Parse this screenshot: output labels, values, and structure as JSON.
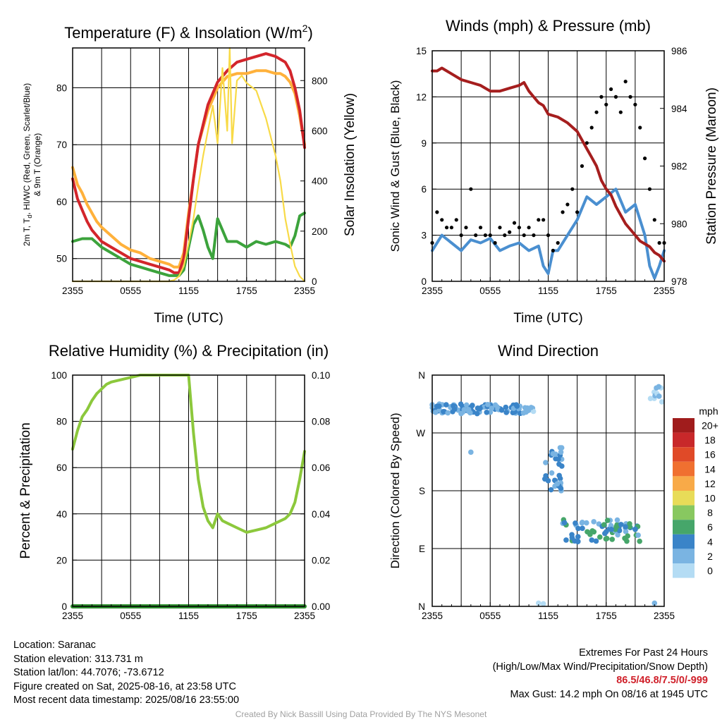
{
  "chart_data": [
    {
      "type": "line",
      "title": "Temperature (F) & Insolation (W/m",
      "title_sup": "2",
      "title_end": ")",
      "xlabel": "Time (UTC)",
      "ylabel_left": "2m T, T",
      "ylabel_left_sub": "d",
      "ylabel_left_rest": ", HI/WC (Red, Green, Scarlet/Blue)",
      "ylabel_left_line2": "& 9m T (Orange)",
      "ylabel_right": "Solar Insolation (Yellow)",
      "x_ticks": [
        "2355",
        "0555",
        "1155",
        "1755",
        "2355"
      ],
      "ylim_left": [
        46,
        87
      ],
      "yticks_left": [
        50,
        60,
        70,
        80
      ],
      "ylim_right": [
        0,
        930
      ],
      "yticks_right": [
        0,
        200,
        400,
        600,
        800
      ],
      "grid": true,
      "series": [
        {
          "color": "#ffb13b",
          "axis": "left",
          "x": [
            0,
            0.5,
            1,
            1.5,
            2,
            2.5,
            3,
            4,
            5,
            6,
            7,
            8,
            9,
            10,
            10.5,
            11,
            11.5,
            12,
            12.5,
            13,
            14,
            15,
            16,
            17,
            18,
            19,
            20,
            21,
            21.5,
            22,
            22.5,
            23,
            23.5,
            24
          ],
          "y": [
            66,
            63,
            61.5,
            59.5,
            58,
            56.5,
            55.5,
            54,
            52.5,
            51.5,
            51,
            50,
            49.5,
            49,
            48.5,
            48.5,
            51,
            58,
            64,
            70,
            76,
            80,
            82,
            82.5,
            82.5,
            83,
            83,
            82.5,
            82.5,
            82,
            81,
            79,
            75,
            70
          ]
        },
        {
          "color": "#d3252b",
          "axis": "left",
          "x": [
            0,
            0.5,
            1,
            1.5,
            2,
            2.5,
            3,
            4,
            5,
            6,
            7,
            8,
            9,
            10,
            10.5,
            11,
            11.5,
            12,
            12.5,
            13,
            14,
            15,
            16,
            17,
            18,
            19,
            20,
            21,
            21.5,
            22,
            22.5,
            23,
            23.5,
            24
          ],
          "y": [
            64,
            60.5,
            58.5,
            56.5,
            55,
            54,
            53,
            52,
            51,
            50,
            49.5,
            49,
            48.5,
            48,
            47.5,
            47.5,
            50,
            57,
            64,
            70,
            77,
            81,
            83,
            84.5,
            85,
            85.5,
            86,
            85.5,
            85,
            84.5,
            83,
            80,
            76,
            69.5
          ]
        },
        {
          "color": "#3ca33c",
          "axis": "left",
          "x": [
            0,
            1,
            2,
            3,
            4,
            5,
            6,
            7,
            8,
            9,
            10,
            10.5,
            11,
            11.5,
            12,
            12.5,
            13,
            13.5,
            14,
            14.5,
            15,
            15.5,
            16,
            17,
            18,
            19,
            20,
            21,
            22,
            22.5,
            23,
            23.5,
            24
          ],
          "y": [
            53,
            53.5,
            53.5,
            52,
            51,
            50,
            49,
            48.5,
            48,
            47.5,
            47,
            47,
            47,
            48,
            52,
            56,
            57.5,
            55,
            52,
            50,
            57,
            55,
            53,
            53,
            52,
            53,
            52.5,
            53,
            52.5,
            52,
            54,
            57.5,
            58
          ]
        },
        {
          "color": "#f8da47",
          "axis": "right",
          "x": [
            0,
            7,
            8,
            9,
            10,
            10.5,
            11,
            11.5,
            12,
            12.5,
            13,
            13.5,
            14,
            14.5,
            15,
            15.5,
            16,
            16.25,
            16.5,
            17,
            17.5,
            18,
            19,
            20,
            21,
            21.5,
            22,
            22.5,
            23,
            23.5,
            24
          ],
          "y": [
            0,
            0,
            0,
            0,
            0,
            5,
            20,
            60,
            150,
            250,
            380,
            500,
            600,
            700,
            550,
            850,
            600,
            930,
            550,
            800,
            820,
            790,
            760,
            650,
            500,
            400,
            250,
            150,
            60,
            20,
            0
          ]
        }
      ]
    },
    {
      "type": "line",
      "title": "Winds (mph) & Pressure (mb)",
      "xlabel": "Time (UTC)",
      "ylabel_left": "Sonic Wind & Gust (Blue, Black)",
      "ylabel_right": "Station Pressure (Maroon)",
      "x_ticks": [
        "2355",
        "0555",
        "1155",
        "1755",
        "2355"
      ],
      "ylim_left": [
        0,
        15
      ],
      "yticks_left": [
        0,
        3,
        6,
        9,
        12,
        15
      ],
      "ylim_right": [
        978,
        986
      ],
      "yticks_right": [
        978,
        980,
        982,
        984,
        986
      ],
      "grid": true,
      "series": [
        {
          "name_role": "wind",
          "color": "#4a8fd0",
          "axis": "left",
          "x": [
            0,
            1,
            2,
            3,
            4,
            5,
            6,
            7,
            8,
            9,
            10,
            11,
            11.5,
            12,
            12.5,
            13,
            14,
            15,
            16,
            17,
            18,
            19,
            20,
            21,
            22,
            22.5,
            23,
            23.5,
            24
          ],
          "y": [
            2,
            3,
            2.5,
            2,
            2.7,
            2.5,
            2.8,
            2,
            2.3,
            2.5,
            2,
            2.3,
            1,
            0.5,
            2,
            2,
            3,
            4,
            5.5,
            5,
            5.5,
            6,
            4.5,
            5,
            3,
            1,
            0.2,
            1,
            2
          ]
        },
        {
          "name_role": "gust",
          "color": "#000000",
          "axis": "left",
          "style": "dots",
          "x": [
            0,
            0.5,
            1,
            1.5,
            2,
            2.5,
            3,
            3.5,
            4,
            4.5,
            5,
            5.5,
            6,
            6.5,
            7,
            7.5,
            8,
            8.5,
            9,
            9.5,
            10,
            10.5,
            11,
            11.5,
            12,
            12.5,
            13,
            13.5,
            14,
            14.5,
            15,
            15.5,
            16,
            16.5,
            17,
            17.5,
            18,
            18.5,
            19,
            19.5,
            20,
            20.5,
            21,
            21.5,
            22,
            22.5,
            23,
            23.5,
            24
          ],
          "y": [
            2.5,
            4.5,
            4,
            3.5,
            3.5,
            4,
            3,
            3.5,
            6,
            3,
            3.5,
            3,
            3,
            2.5,
            3.5,
            3,
            3.2,
            3.8,
            3.5,
            3,
            3.5,
            3,
            4,
            4,
            3,
            2,
            2.5,
            4.5,
            5,
            6,
            4.5,
            7.5,
            9,
            10,
            11,
            12,
            11.5,
            12.5,
            12,
            11,
            13,
            12,
            11.5,
            10,
            8,
            6,
            4,
            2.5,
            2.5
          ]
        },
        {
          "name_role": "pressure",
          "color": "#a51e1e",
          "axis": "right",
          "x": [
            0,
            0.5,
            1,
            1.5,
            2,
            3,
            4,
            5,
            6,
            7,
            8,
            9,
            9.5,
            10,
            10.5,
            11,
            11.5,
            12,
            13,
            14,
            15,
            15.5,
            16,
            16.5,
            17,
            17.5,
            18,
            18.5,
            19,
            19.5,
            20,
            20.5,
            21,
            21.5,
            22,
            22.5,
            23,
            23.5,
            24
          ],
          "y": [
            985.3,
            985.3,
            985.4,
            985.3,
            985.2,
            985,
            984.9,
            984.8,
            984.6,
            984.6,
            984.7,
            984.8,
            984.9,
            984.6,
            984.4,
            984.2,
            984.1,
            983.8,
            983.7,
            983.5,
            983.2,
            982.9,
            982.6,
            982.3,
            982,
            981.5,
            981.2,
            981,
            980.6,
            980.3,
            980,
            979.8,
            979.6,
            979.4,
            979.3,
            979.2,
            979,
            978.9,
            978.7
          ]
        }
      ]
    },
    {
      "type": "line",
      "title": "Relative Humidity (%) & Precipitation (in)",
      "xlabel": "",
      "ylabel_left": "Percent & Precipitation",
      "x_ticks": [
        "2355",
        "0555",
        "1155",
        "1755",
        "2355"
      ],
      "ylim_left": [
        0,
        100
      ],
      "yticks_left": [
        0,
        20,
        40,
        60,
        80,
        100
      ],
      "ylim_right": [
        0,
        0.1
      ],
      "yticks_right": [
        "0.00",
        "0.02",
        "0.04",
        "0.06",
        "0.08",
        "0.10"
      ],
      "grid": true,
      "series": [
        {
          "color": "#8cc83c",
          "axis": "left",
          "x": [
            0,
            0.5,
            1,
            1.5,
            2,
            2.5,
            3,
            3.5,
            4,
            5,
            6,
            7,
            8,
            9,
            10,
            11,
            11.5,
            12,
            12.5,
            13,
            13.5,
            14,
            14.5,
            15,
            15.5,
            16,
            17,
            18,
            19,
            20,
            21,
            22,
            22.5,
            23,
            23.5,
            24
          ],
          "y": [
            68,
            76,
            82,
            85,
            89,
            92,
            94,
            96,
            97,
            98,
            99,
            100,
            100,
            100,
            100,
            100,
            100,
            100,
            75,
            55,
            43,
            37,
            34,
            40,
            37,
            36,
            34,
            32,
            33,
            34,
            36,
            38,
            40,
            45,
            55,
            67
          ]
        },
        {
          "color": "#2f8f2f",
          "axis": "right",
          "x": [
            0,
            24
          ],
          "y": [
            0,
            0
          ]
        }
      ]
    },
    {
      "type": "scatter",
      "title": "Wind Direction",
      "xlabel": "",
      "ylabel_left": "Direction (Colored By Speed)",
      "x_ticks": [
        "2355",
        "0555",
        "1155",
        "1755",
        "2355"
      ],
      "y_ticks": [
        "N",
        "W",
        "S",
        "E",
        "N"
      ],
      "ylim_left": [
        0,
        360
      ],
      "grid": true,
      "legend": {
        "title": "mph",
        "labels": [
          "20+",
          "18",
          "16",
          "14",
          "12",
          "10",
          "8",
          "6",
          "4",
          "2",
          "0"
        ],
        "colors": [
          "#a01c1c",
          "#c8282a",
          "#e04a28",
          "#f07030",
          "#f8aa48",
          "#e8dc58",
          "#88c860",
          "#46a66a",
          "#3a84c8",
          "#7ab4e2",
          "#b4dcf4"
        ]
      },
      "clusters": [
        {
          "x": [
            0,
            9.5
          ],
          "y": [
            300,
            315
          ],
          "colors": [
            "#7ab4e2",
            "#3a84c8"
          ],
          "n": 90
        },
        {
          "x": [
            9.5,
            10.5
          ],
          "y": [
            300,
            310
          ],
          "colors": [
            "#b4dcf4",
            "#7ab4e2"
          ],
          "n": 8
        },
        {
          "x": [
            11.5,
            13.5
          ],
          "y": [
            180,
            250
          ],
          "colors": [
            "#7ab4e2",
            "#3a84c8"
          ],
          "n": 30
        },
        {
          "x": [
            13.5,
            21.5
          ],
          "y": [
            100,
            135
          ],
          "colors": [
            "#46a66a",
            "#3a84c8",
            "#7ab4e2"
          ],
          "n": 70
        },
        {
          "x": [
            22.5,
            24
          ],
          "y": [
            315,
            345
          ],
          "colors": [
            "#b4dcf4",
            "#7ab4e2"
          ],
          "n": 10
        }
      ],
      "isolated_points": [
        {
          "x": 4,
          "y": 240,
          "c": "#7ab4e2"
        },
        {
          "x": 11.5,
          "y": 4,
          "c": "#b4dcf4"
        },
        {
          "x": 23,
          "y": 5,
          "c": "#7ab4e2"
        },
        {
          "x": 11,
          "y": 5,
          "c": "#b4dcf4"
        }
      ]
    }
  ],
  "info_left": [
    "Location: Saranac",
    "Station elevation: 313.731 m",
    "Station lat/lon: 44.7076; -73.6712",
    "Figure created on Sat, 2025-08-16, at 23:58 UTC",
    "Most recent data timestamp: 2025/08/16 23:55:00"
  ],
  "info_right": {
    "line1": "Extremes For Past 24 Hours",
    "line2": "(High/Low/Max Wind/Precipitation/Snow Depth)",
    "extremes": "86.5/46.8/7.5/0/-999",
    "line4": "Max Gust: 14.2 mph On 08/16 at 1945 UTC"
  },
  "credit": "Created By Nick Bassill Using Data Provided By The NYS Mesonet"
}
